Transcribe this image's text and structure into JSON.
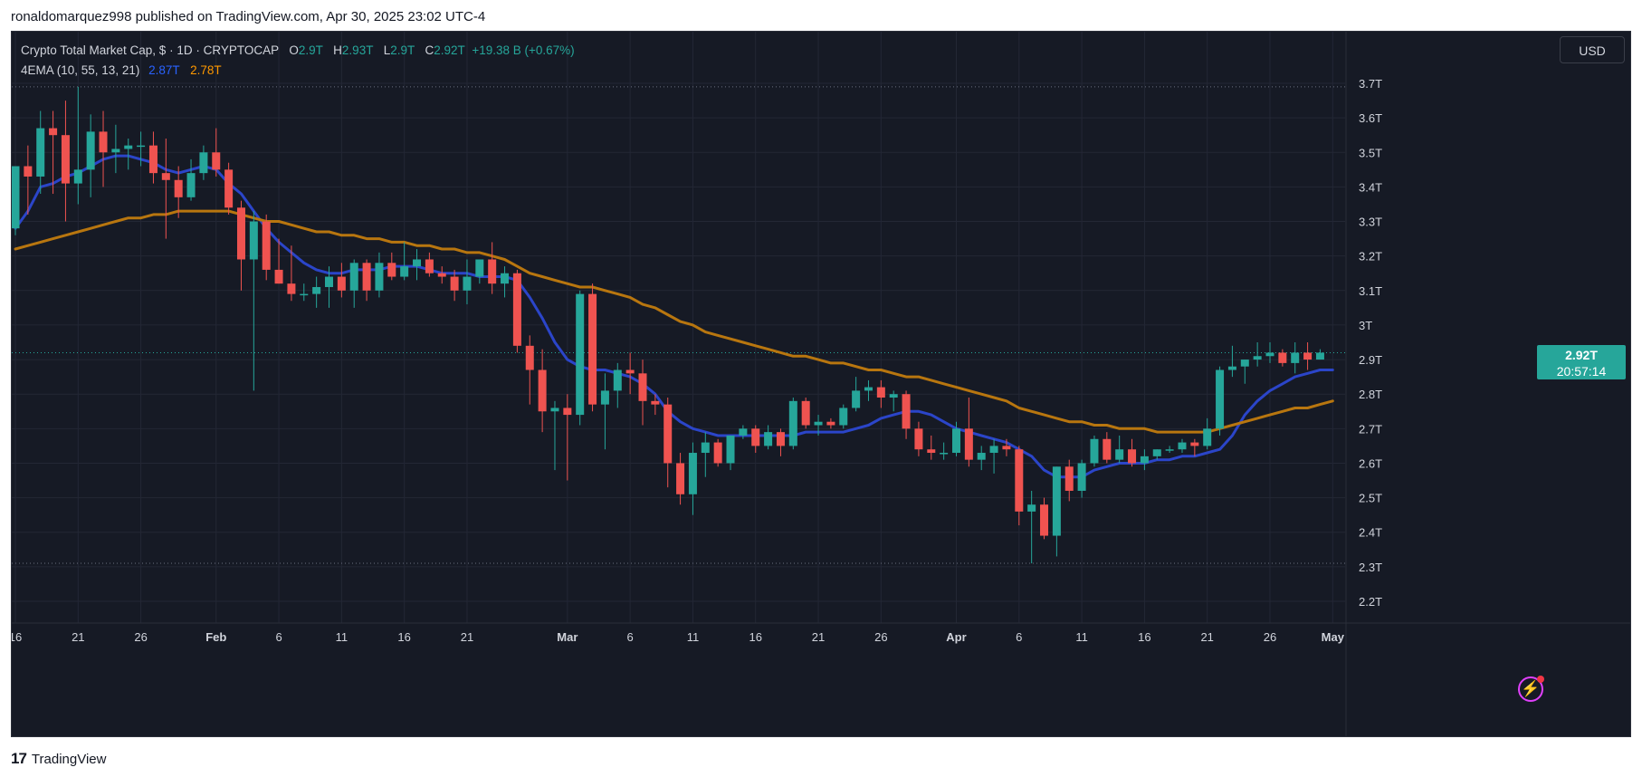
{
  "header": {
    "publish_line": "ronaldomarquez998 published on TradingView.com, Apr 30, 2025 23:02 UTC-4"
  },
  "legend": {
    "symbol_title": "Crypto Total Market Cap, $ · 1D · CRYPTOCAP",
    "o_label": "O",
    "o_value": "2.9T",
    "h_label": "H",
    "h_value": "2.93T",
    "l_label": "L",
    "l_value": "2.9T",
    "c_label": "C",
    "c_value": "2.92T",
    "change": "+19.38 B (+0.67%)",
    "indicator_name": "4EMA (10, 55, 13, 21)",
    "ema_fast_value": "2.87T",
    "ema_slow_value": "2.78T"
  },
  "currency_button": "USD",
  "price_tag": {
    "price": "2.92T",
    "countdown": "20:57:14"
  },
  "footer": {
    "brand": "TradingView",
    "logo_glyph": "17"
  },
  "colors": {
    "background": "#161a25",
    "grid": "#232735",
    "up": "#26a69a",
    "down": "#ef5350",
    "ema_fast": "#2b45c9",
    "ema_slow": "#b8760f",
    "axis_text": "#d1d4dc"
  },
  "chart_data": {
    "type": "candlestick",
    "title": "Crypto Total Market Cap, $ · 1D · CRYPTOCAP",
    "ylabel": "",
    "xlabel": "",
    "ylim": [
      2.17,
      3.72
    ],
    "y_ticks": [
      "2.2T",
      "2.3T",
      "2.4T",
      "2.5T",
      "2.6T",
      "2.7T",
      "2.8T",
      "2.9T",
      "3T",
      "3.1T",
      "3.2T",
      "3.3T",
      "3.4T",
      "3.5T",
      "3.6T",
      "3.7T"
    ],
    "y_tick_values": [
      2.2,
      2.3,
      2.4,
      2.5,
      2.6,
      2.7,
      2.8,
      2.9,
      3.0,
      3.1,
      3.2,
      3.3,
      3.4,
      3.5,
      3.6,
      3.7
    ],
    "x_ticks": [
      {
        "label": "16",
        "index": 0
      },
      {
        "label": "21",
        "index": 5
      },
      {
        "label": "26",
        "index": 10
      },
      {
        "label": "Feb",
        "index": 16
      },
      {
        "label": "6",
        "index": 21
      },
      {
        "label": "11",
        "index": 26
      },
      {
        "label": "16",
        "index": 31
      },
      {
        "label": "21",
        "index": 36
      },
      {
        "label": "Mar",
        "index": 44
      },
      {
        "label": "6",
        "index": 49
      },
      {
        "label": "11",
        "index": 54
      },
      {
        "label": "16",
        "index": 59
      },
      {
        "label": "21",
        "index": 64
      },
      {
        "label": "26",
        "index": 69
      },
      {
        "label": "Apr",
        "index": 75
      },
      {
        "label": "6",
        "index": 80
      },
      {
        "label": "11",
        "index": 85
      },
      {
        "label": "16",
        "index": 90
      },
      {
        "label": "21",
        "index": 95
      },
      {
        "label": "26",
        "index": 100
      },
      {
        "label": "May",
        "index": 105
      }
    ],
    "grid": true,
    "candles": [
      {
        "date": "Jan 16",
        "o": 3.28,
        "h": 3.46,
        "l": 3.26,
        "c": 3.46
      },
      {
        "date": "Jan 17",
        "o": 3.46,
        "h": 3.52,
        "l": 3.32,
        "c": 3.43
      },
      {
        "date": "Jan 18",
        "o": 3.43,
        "h": 3.62,
        "l": 3.38,
        "c": 3.57
      },
      {
        "date": "Jan 19",
        "o": 3.57,
        "h": 3.62,
        "l": 3.38,
        "c": 3.55
      },
      {
        "date": "Jan 20",
        "o": 3.55,
        "h": 3.65,
        "l": 3.3,
        "c": 3.41
      },
      {
        "date": "Jan 21",
        "o": 3.41,
        "h": 3.69,
        "l": 3.35,
        "c": 3.45
      },
      {
        "date": "Jan 22",
        "o": 3.45,
        "h": 3.61,
        "l": 3.37,
        "c": 3.56
      },
      {
        "date": "Jan 23",
        "o": 3.56,
        "h": 3.62,
        "l": 3.4,
        "c": 3.5
      },
      {
        "date": "Jan 24",
        "o": 3.5,
        "h": 3.58,
        "l": 3.44,
        "c": 3.51
      },
      {
        "date": "Jan 25",
        "o": 3.51,
        "h": 3.54,
        "l": 3.45,
        "c": 3.52
      },
      {
        "date": "Jan 26",
        "o": 3.52,
        "h": 3.56,
        "l": 3.46,
        "c": 3.52
      },
      {
        "date": "Jan 27",
        "o": 3.52,
        "h": 3.56,
        "l": 3.41,
        "c": 3.44
      },
      {
        "date": "Jan 28",
        "o": 3.44,
        "h": 3.54,
        "l": 3.25,
        "c": 3.42
      },
      {
        "date": "Jan 29",
        "o": 3.42,
        "h": 3.46,
        "l": 3.31,
        "c": 3.37
      },
      {
        "date": "Jan 30",
        "o": 3.37,
        "h": 3.48,
        "l": 3.36,
        "c": 3.44
      },
      {
        "date": "Jan 31",
        "o": 3.44,
        "h": 3.52,
        "l": 3.42,
        "c": 3.5
      },
      {
        "date": "Feb 1",
        "o": 3.5,
        "h": 3.57,
        "l": 3.43,
        "c": 3.45
      },
      {
        "date": "Feb 2",
        "o": 3.45,
        "h": 3.47,
        "l": 3.32,
        "c": 3.34
      },
      {
        "date": "Feb 3",
        "o": 3.34,
        "h": 3.36,
        "l": 3.1,
        "c": 3.19
      },
      {
        "date": "Feb 4",
        "o": 3.19,
        "h": 3.33,
        "l": 2.81,
        "c": 3.3
      },
      {
        "date": "Feb 5",
        "o": 3.3,
        "h": 3.32,
        "l": 3.13,
        "c": 3.16
      },
      {
        "date": "Feb 6",
        "o": 3.16,
        "h": 3.25,
        "l": 3.12,
        "c": 3.12
      },
      {
        "date": "Feb 7",
        "o": 3.12,
        "h": 3.23,
        "l": 3.07,
        "c": 3.09
      },
      {
        "date": "Feb 8",
        "o": 3.09,
        "h": 3.12,
        "l": 3.07,
        "c": 3.09
      },
      {
        "date": "Feb 9",
        "o": 3.09,
        "h": 3.14,
        "l": 3.05,
        "c": 3.11
      },
      {
        "date": "Feb 10",
        "o": 3.11,
        "h": 3.17,
        "l": 3.05,
        "c": 3.14
      },
      {
        "date": "Feb 11",
        "o": 3.14,
        "h": 3.18,
        "l": 3.08,
        "c": 3.1
      },
      {
        "date": "Feb 12",
        "o": 3.1,
        "h": 3.19,
        "l": 3.05,
        "c": 3.18
      },
      {
        "date": "Feb 13",
        "o": 3.18,
        "h": 3.19,
        "l": 3.07,
        "c": 3.1
      },
      {
        "date": "Feb 14",
        "o": 3.1,
        "h": 3.21,
        "l": 3.08,
        "c": 3.18
      },
      {
        "date": "Feb 15",
        "o": 3.18,
        "h": 3.21,
        "l": 3.13,
        "c": 3.14
      },
      {
        "date": "Feb 16",
        "o": 3.14,
        "h": 3.24,
        "l": 3.13,
        "c": 3.17
      },
      {
        "date": "Feb 17",
        "o": 3.17,
        "h": 3.22,
        "l": 3.13,
        "c": 3.19
      },
      {
        "date": "Feb 18",
        "o": 3.19,
        "h": 3.21,
        "l": 3.14,
        "c": 3.15
      },
      {
        "date": "Feb 19",
        "o": 3.15,
        "h": 3.17,
        "l": 3.12,
        "c": 3.14
      },
      {
        "date": "Feb 20",
        "o": 3.14,
        "h": 3.16,
        "l": 3.07,
        "c": 3.1
      },
      {
        "date": "Feb 21",
        "o": 3.1,
        "h": 3.19,
        "l": 3.06,
        "c": 3.14
      },
      {
        "date": "Feb 22",
        "o": 3.14,
        "h": 3.19,
        "l": 3.12,
        "c": 3.19
      },
      {
        "date": "Feb 23",
        "o": 3.19,
        "h": 3.24,
        "l": 3.09,
        "c": 3.12
      },
      {
        "date": "Feb 24",
        "o": 3.12,
        "h": 3.17,
        "l": 3.08,
        "c": 3.15
      },
      {
        "date": "Feb 25",
        "o": 3.15,
        "h": 3.16,
        "l": 2.92,
        "c": 2.94
      },
      {
        "date": "Feb 26",
        "o": 2.94,
        "h": 2.97,
        "l": 2.77,
        "c": 2.87
      },
      {
        "date": "Feb 27",
        "o": 2.87,
        "h": 2.93,
        "l": 2.69,
        "c": 2.75
      },
      {
        "date": "Feb 28",
        "o": 2.75,
        "h": 2.78,
        "l": 2.58,
        "c": 2.76
      },
      {
        "date": "Mar 1",
        "o": 2.76,
        "h": 2.8,
        "l": 2.55,
        "c": 2.74
      },
      {
        "date": "Mar 2",
        "o": 2.74,
        "h": 3.1,
        "l": 2.71,
        "c": 3.09
      },
      {
        "date": "Mar 3",
        "o": 3.09,
        "h": 3.12,
        "l": 2.75,
        "c": 2.77
      },
      {
        "date": "Mar 4",
        "o": 2.77,
        "h": 2.86,
        "l": 2.64,
        "c": 2.81
      },
      {
        "date": "Mar 5",
        "o": 2.81,
        "h": 2.89,
        "l": 2.76,
        "c": 2.87
      },
      {
        "date": "Mar 6",
        "o": 2.87,
        "h": 2.92,
        "l": 2.8,
        "c": 2.86
      },
      {
        "date": "Mar 7",
        "o": 2.86,
        "h": 2.9,
        "l": 2.71,
        "c": 2.78
      },
      {
        "date": "Mar 8",
        "o": 2.78,
        "h": 2.8,
        "l": 2.74,
        "c": 2.77
      },
      {
        "date": "Mar 9",
        "o": 2.77,
        "h": 2.79,
        "l": 2.53,
        "c": 2.6
      },
      {
        "date": "Mar 10",
        "o": 2.6,
        "h": 2.63,
        "l": 2.48,
        "c": 2.51
      },
      {
        "date": "Mar 11",
        "o": 2.51,
        "h": 2.66,
        "l": 2.45,
        "c": 2.63
      },
      {
        "date": "Mar 12",
        "o": 2.63,
        "h": 2.69,
        "l": 2.56,
        "c": 2.66
      },
      {
        "date": "Mar 13",
        "o": 2.66,
        "h": 2.67,
        "l": 2.59,
        "c": 2.6
      },
      {
        "date": "Mar 14",
        "o": 2.6,
        "h": 2.68,
        "l": 2.58,
        "c": 2.68
      },
      {
        "date": "Mar 15",
        "o": 2.68,
        "h": 2.71,
        "l": 2.67,
        "c": 2.7
      },
      {
        "date": "Mar 16",
        "o": 2.7,
        "h": 2.71,
        "l": 2.63,
        "c": 2.65
      },
      {
        "date": "Mar 17",
        "o": 2.65,
        "h": 2.71,
        "l": 2.64,
        "c": 2.69
      },
      {
        "date": "Mar 18",
        "o": 2.69,
        "h": 2.7,
        "l": 2.62,
        "c": 2.65
      },
      {
        "date": "Mar 19",
        "o": 2.65,
        "h": 2.79,
        "l": 2.64,
        "c": 2.78
      },
      {
        "date": "Mar 20",
        "o": 2.78,
        "h": 2.79,
        "l": 2.7,
        "c": 2.71
      },
      {
        "date": "Mar 21",
        "o": 2.71,
        "h": 2.74,
        "l": 2.68,
        "c": 2.72
      },
      {
        "date": "Mar 22",
        "o": 2.72,
        "h": 2.73,
        "l": 2.7,
        "c": 2.71
      },
      {
        "date": "Mar 23",
        "o": 2.71,
        "h": 2.77,
        "l": 2.7,
        "c": 2.76
      },
      {
        "date": "Mar 24",
        "o": 2.76,
        "h": 2.85,
        "l": 2.75,
        "c": 2.81
      },
      {
        "date": "Mar 25",
        "o": 2.81,
        "h": 2.84,
        "l": 2.78,
        "c": 2.82
      },
      {
        "date": "Mar 26",
        "o": 2.82,
        "h": 2.84,
        "l": 2.76,
        "c": 2.79
      },
      {
        "date": "Mar 27",
        "o": 2.79,
        "h": 2.81,
        "l": 2.75,
        "c": 2.8
      },
      {
        "date": "Mar 28",
        "o": 2.8,
        "h": 2.81,
        "l": 2.67,
        "c": 2.7
      },
      {
        "date": "Mar 29",
        "o": 2.7,
        "h": 2.72,
        "l": 2.62,
        "c": 2.64
      },
      {
        "date": "Mar 30",
        "o": 2.64,
        "h": 2.68,
        "l": 2.61,
        "c": 2.63
      },
      {
        "date": "Mar 31",
        "o": 2.63,
        "h": 2.66,
        "l": 2.61,
        "c": 2.63
      },
      {
        "date": "Apr 1",
        "o": 2.63,
        "h": 2.72,
        "l": 2.62,
        "c": 2.7
      },
      {
        "date": "Apr 2",
        "o": 2.7,
        "h": 2.79,
        "l": 2.59,
        "c": 2.61
      },
      {
        "date": "Apr 3",
        "o": 2.61,
        "h": 2.65,
        "l": 2.58,
        "c": 2.63
      },
      {
        "date": "Apr 4",
        "o": 2.63,
        "h": 2.67,
        "l": 2.57,
        "c": 2.65
      },
      {
        "date": "Apr 5",
        "o": 2.65,
        "h": 2.67,
        "l": 2.62,
        "c": 2.64
      },
      {
        "date": "Apr 6",
        "o": 2.64,
        "h": 2.65,
        "l": 2.42,
        "c": 2.46
      },
      {
        "date": "Apr 7",
        "o": 2.46,
        "h": 2.52,
        "l": 2.31,
        "c": 2.48
      },
      {
        "date": "Apr 8",
        "o": 2.48,
        "h": 2.5,
        "l": 2.38,
        "c": 2.39
      },
      {
        "date": "Apr 9",
        "o": 2.39,
        "h": 2.59,
        "l": 2.33,
        "c": 2.59
      },
      {
        "date": "Apr 10",
        "o": 2.59,
        "h": 2.61,
        "l": 2.49,
        "c": 2.52
      },
      {
        "date": "Apr 11",
        "o": 2.52,
        "h": 2.61,
        "l": 2.5,
        "c": 2.6
      },
      {
        "date": "Apr 12",
        "o": 2.6,
        "h": 2.68,
        "l": 2.59,
        "c": 2.67
      },
      {
        "date": "Apr 13",
        "o": 2.67,
        "h": 2.69,
        "l": 2.6,
        "c": 2.61
      },
      {
        "date": "Apr 14",
        "o": 2.61,
        "h": 2.68,
        "l": 2.6,
        "c": 2.64
      },
      {
        "date": "Apr 15",
        "o": 2.64,
        "h": 2.67,
        "l": 2.59,
        "c": 2.6
      },
      {
        "date": "Apr 16",
        "o": 2.6,
        "h": 2.64,
        "l": 2.58,
        "c": 2.62
      },
      {
        "date": "Apr 17",
        "o": 2.62,
        "h": 2.64,
        "l": 2.61,
        "c": 2.64
      },
      {
        "date": "Apr 18",
        "o": 2.64,
        "h": 2.65,
        "l": 2.63,
        "c": 2.64
      },
      {
        "date": "Apr 19",
        "o": 2.64,
        "h": 2.67,
        "l": 2.63,
        "c": 2.66
      },
      {
        "date": "Apr 20",
        "o": 2.66,
        "h": 2.67,
        "l": 2.62,
        "c": 2.65
      },
      {
        "date": "Apr 21",
        "o": 2.65,
        "h": 2.73,
        "l": 2.64,
        "c": 2.7
      },
      {
        "date": "Apr 22",
        "o": 2.7,
        "h": 2.88,
        "l": 2.68,
        "c": 2.87
      },
      {
        "date": "Apr 23",
        "o": 2.87,
        "h": 2.94,
        "l": 2.85,
        "c": 2.88
      },
      {
        "date": "Apr 24",
        "o": 2.88,
        "h": 2.9,
        "l": 2.83,
        "c": 2.9
      },
      {
        "date": "Apr 25",
        "o": 2.9,
        "h": 2.95,
        "l": 2.88,
        "c": 2.91
      },
      {
        "date": "Apr 26",
        "o": 2.91,
        "h": 2.95,
        "l": 2.89,
        "c": 2.92
      },
      {
        "date": "Apr 27",
        "o": 2.92,
        "h": 2.93,
        "l": 2.88,
        "c": 2.89
      },
      {
        "date": "Apr 28",
        "o": 2.89,
        "h": 2.95,
        "l": 2.86,
        "c": 2.92
      },
      {
        "date": "Apr 29",
        "o": 2.92,
        "h": 2.95,
        "l": 2.87,
        "c": 2.9
      },
      {
        "date": "Apr 30",
        "o": 2.9,
        "h": 2.93,
        "l": 2.9,
        "c": 2.92
      }
    ],
    "series": [
      {
        "name": "",
        "color": "#2b45c9",
        "values": [
          3.28,
          3.33,
          3.4,
          3.41,
          3.43,
          3.44,
          3.46,
          3.48,
          3.49,
          3.49,
          3.48,
          3.47,
          3.45,
          3.44,
          3.45,
          3.46,
          3.45,
          3.41,
          3.38,
          3.33,
          3.28,
          3.24,
          3.21,
          3.18,
          3.16,
          3.15,
          3.15,
          3.16,
          3.16,
          3.16,
          3.17,
          3.17,
          3.17,
          3.16,
          3.15,
          3.15,
          3.15,
          3.14,
          3.14,
          3.14,
          3.13,
          3.08,
          3.02,
          2.95,
          2.9,
          2.88,
          2.87,
          2.87,
          2.86,
          2.85,
          2.83,
          2.8,
          2.75,
          2.72,
          2.7,
          2.69,
          2.68,
          2.68,
          2.68,
          2.68,
          2.68,
          2.68,
          2.68,
          2.69,
          2.69,
          2.69,
          2.69,
          2.7,
          2.71,
          2.73,
          2.74,
          2.75,
          2.75,
          2.74,
          2.72,
          2.7,
          2.69,
          2.68,
          2.67,
          2.66,
          2.64,
          2.62,
          2.58,
          2.56,
          2.56,
          2.56,
          2.58,
          2.59,
          2.6,
          2.6,
          2.6,
          2.61,
          2.61,
          2.62,
          2.62,
          2.63,
          2.64,
          2.68,
          2.74,
          2.78,
          2.81,
          2.83,
          2.85,
          2.86,
          2.87,
          2.87
        ]
      },
      {
        "name": "",
        "color": "#b8760f",
        "values": [
          3.22,
          3.23,
          3.24,
          3.25,
          3.26,
          3.27,
          3.28,
          3.29,
          3.3,
          3.31,
          3.31,
          3.32,
          3.32,
          3.33,
          3.33,
          3.33,
          3.33,
          3.33,
          3.32,
          3.31,
          3.3,
          3.3,
          3.29,
          3.28,
          3.27,
          3.27,
          3.26,
          3.26,
          3.25,
          3.25,
          3.24,
          3.24,
          3.23,
          3.23,
          3.22,
          3.22,
          3.21,
          3.21,
          3.2,
          3.19,
          3.17,
          3.15,
          3.14,
          3.13,
          3.12,
          3.11,
          3.11,
          3.1,
          3.09,
          3.08,
          3.06,
          3.05,
          3.03,
          3.01,
          3.0,
          2.98,
          2.97,
          2.96,
          2.95,
          2.94,
          2.93,
          2.92,
          2.91,
          2.91,
          2.9,
          2.89,
          2.89,
          2.88,
          2.87,
          2.87,
          2.86,
          2.85,
          2.85,
          2.84,
          2.83,
          2.82,
          2.81,
          2.8,
          2.79,
          2.78,
          2.76,
          2.75,
          2.74,
          2.73,
          2.72,
          2.72,
          2.71,
          2.71,
          2.7,
          2.7,
          2.7,
          2.69,
          2.69,
          2.69,
          2.69,
          2.69,
          2.7,
          2.71,
          2.72,
          2.73,
          2.74,
          2.75,
          2.76,
          2.76,
          2.77,
          2.78
        ]
      }
    ],
    "reference_lines": [
      2.92
    ],
    "current_price": 2.92
  }
}
